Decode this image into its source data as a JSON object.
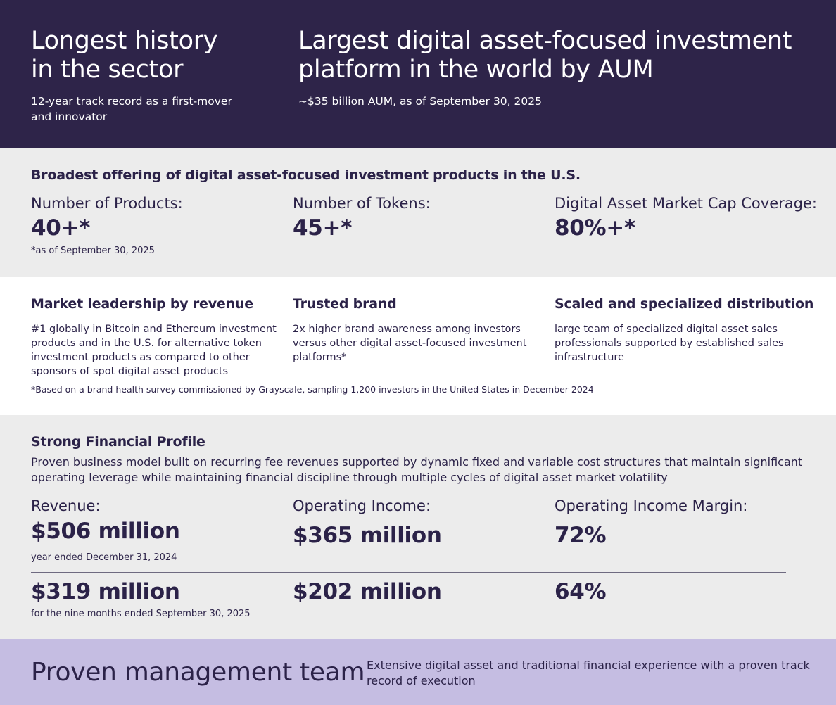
{
  "hero": {
    "left_title_line1": "Longest history",
    "left_title_line2": "in the sector",
    "left_sub_line1": "12-year track record as a first-mover",
    "left_sub_line2": "and innovator",
    "right_title_line1": "Largest digital asset-focused investment",
    "right_title_line2": "platform in the world by AUM",
    "right_sub": "~$35 billion AUM, as of September 30, 2025"
  },
  "offering": {
    "title": "Broadest offering of digital asset-focused investment products in the U.S.",
    "metrics": [
      {
        "label": "Number of Products:",
        "value": "40+*"
      },
      {
        "label": "Number of Tokens:",
        "value": "45+*"
      },
      {
        "label": "Digital Asset Market Cap Coverage:",
        "value": "80%+*"
      }
    ],
    "footnote": "*as of September 30, 2025"
  },
  "leadership": {
    "columns": [
      {
        "heading": "Market leadership by revenue",
        "lines": [
          "#1 globally in Bitcoin and Ethereum investment",
          "products and in the U.S. for alternative token",
          "investment products as compared to other",
          "sponsors of spot digital asset products"
        ]
      },
      {
        "heading": "Trusted brand",
        "lines": [
          "2x higher brand awareness among investors",
          "versus other digital asset-focused investment",
          "platforms*"
        ]
      },
      {
        "heading": "Scaled and specialized distribution",
        "lines": [
          "large team of specialized digital asset sales",
          "professionals supported by established sales",
          "infrastructure"
        ]
      }
    ],
    "footnote": "*Based on a brand health survey commissioned by Grayscale, sampling 1,200 investors in the United States in December 2024"
  },
  "financial": {
    "title": "Strong Financial Profile",
    "desc_line1": "Proven business model built on recurring fee revenues supported by dynamic fixed and variable cost structures that maintain significant",
    "desc_line2": "operating leverage while maintaining financial discipline through multiple cycles of digital asset market volatility",
    "labels": [
      "Revenue:",
      "Operating Income:",
      "Operating Income Margin:"
    ],
    "row1": {
      "values": [
        "$506 million",
        "$365 million",
        "72%"
      ],
      "period": "year ended December 31, 2024"
    },
    "row2": {
      "values": [
        "$319 million",
        "$202 million",
        "64%"
      ],
      "period": "for the nine months ended September 30, 2025"
    }
  },
  "team": {
    "title": "Proven management team",
    "desc_line1": "Extensive digital asset and traditional financial experience with a proven track",
    "desc_line2": "record of execution"
  }
}
